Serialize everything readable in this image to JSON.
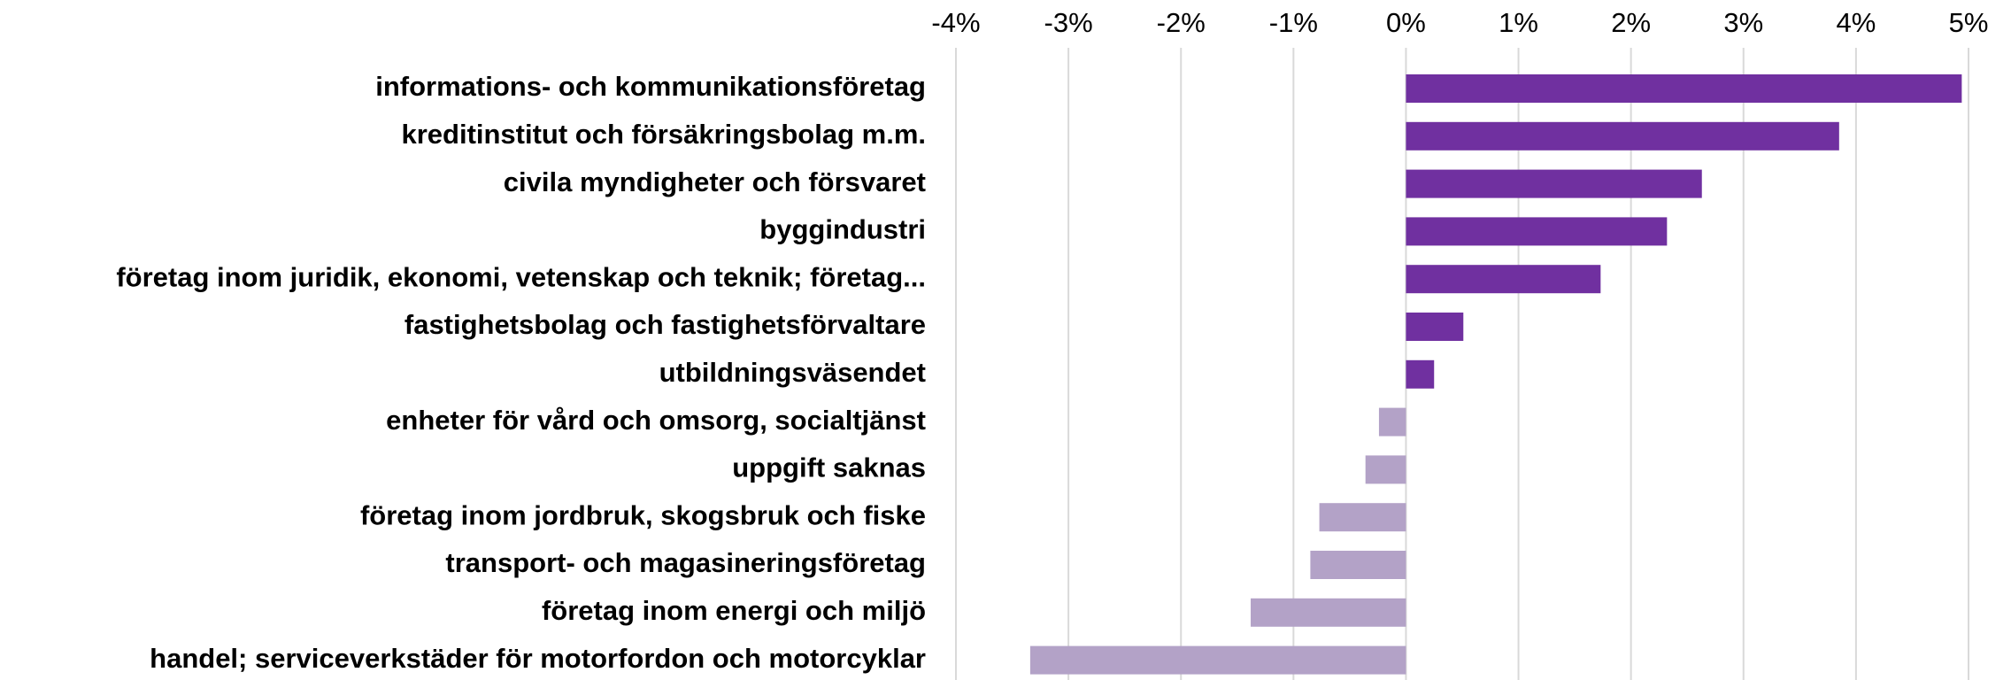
{
  "chart_data": {
    "type": "bar",
    "orientation": "horizontal",
    "categories": [
      "informations- och kommunikationsföretag",
      "kreditinstitut och försäkringsbolag m.m.",
      "civila myndigheter och försvaret",
      "byggindustri",
      "företag inom juridik, ekonomi, vetenskap och teknik; företag...",
      "fastighetsbolag och fastighetsförvaltare",
      "utbildningsväsendet",
      "enheter för vård och omsorg, socialtjänst",
      "uppgift saknas",
      "företag inom jordbruk, skogsbruk och fiske",
      "transport- och magasineringsföretag",
      "företag inom energi och miljö",
      "handel; serviceverkstäder för motorfordon och motorcyklar"
    ],
    "values": [
      4.94,
      3.85,
      2.63,
      2.32,
      1.73,
      0.51,
      0.25,
      -0.24,
      -0.36,
      -0.77,
      -0.85,
      -1.38,
      -3.34
    ],
    "color": "#7030a0",
    "negative_color": "#b3a2c7",
    "xlim": [
      -4,
      5
    ],
    "xticks": [
      {
        "value": -4,
        "label": "-4%"
      },
      {
        "value": -3,
        "label": "-3%"
      },
      {
        "value": -2,
        "label": "-2%"
      },
      {
        "value": -1,
        "label": "-1%"
      },
      {
        "value": 0,
        "label": "0%"
      },
      {
        "value": 1,
        "label": "1%"
      },
      {
        "value": 2,
        "label": "2%"
      },
      {
        "value": 3,
        "label": "3%"
      },
      {
        "value": 4,
        "label": "4%"
      },
      {
        "value": 5,
        "label": "5%"
      }
    ],
    "grid": true
  }
}
